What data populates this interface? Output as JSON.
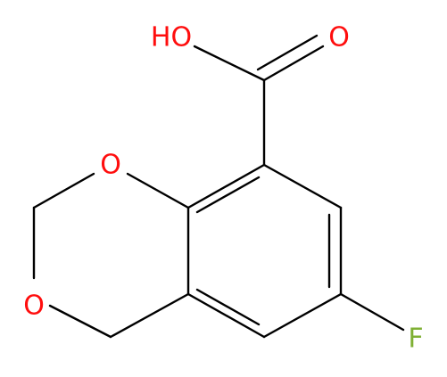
{
  "atoms": [
    {
      "label": "HO"
    },
    {
      "label": "O"
    },
    {
      "label": "O"
    },
    {
      "label": "O"
    },
    {
      "label": "F"
    }
  ]
}
